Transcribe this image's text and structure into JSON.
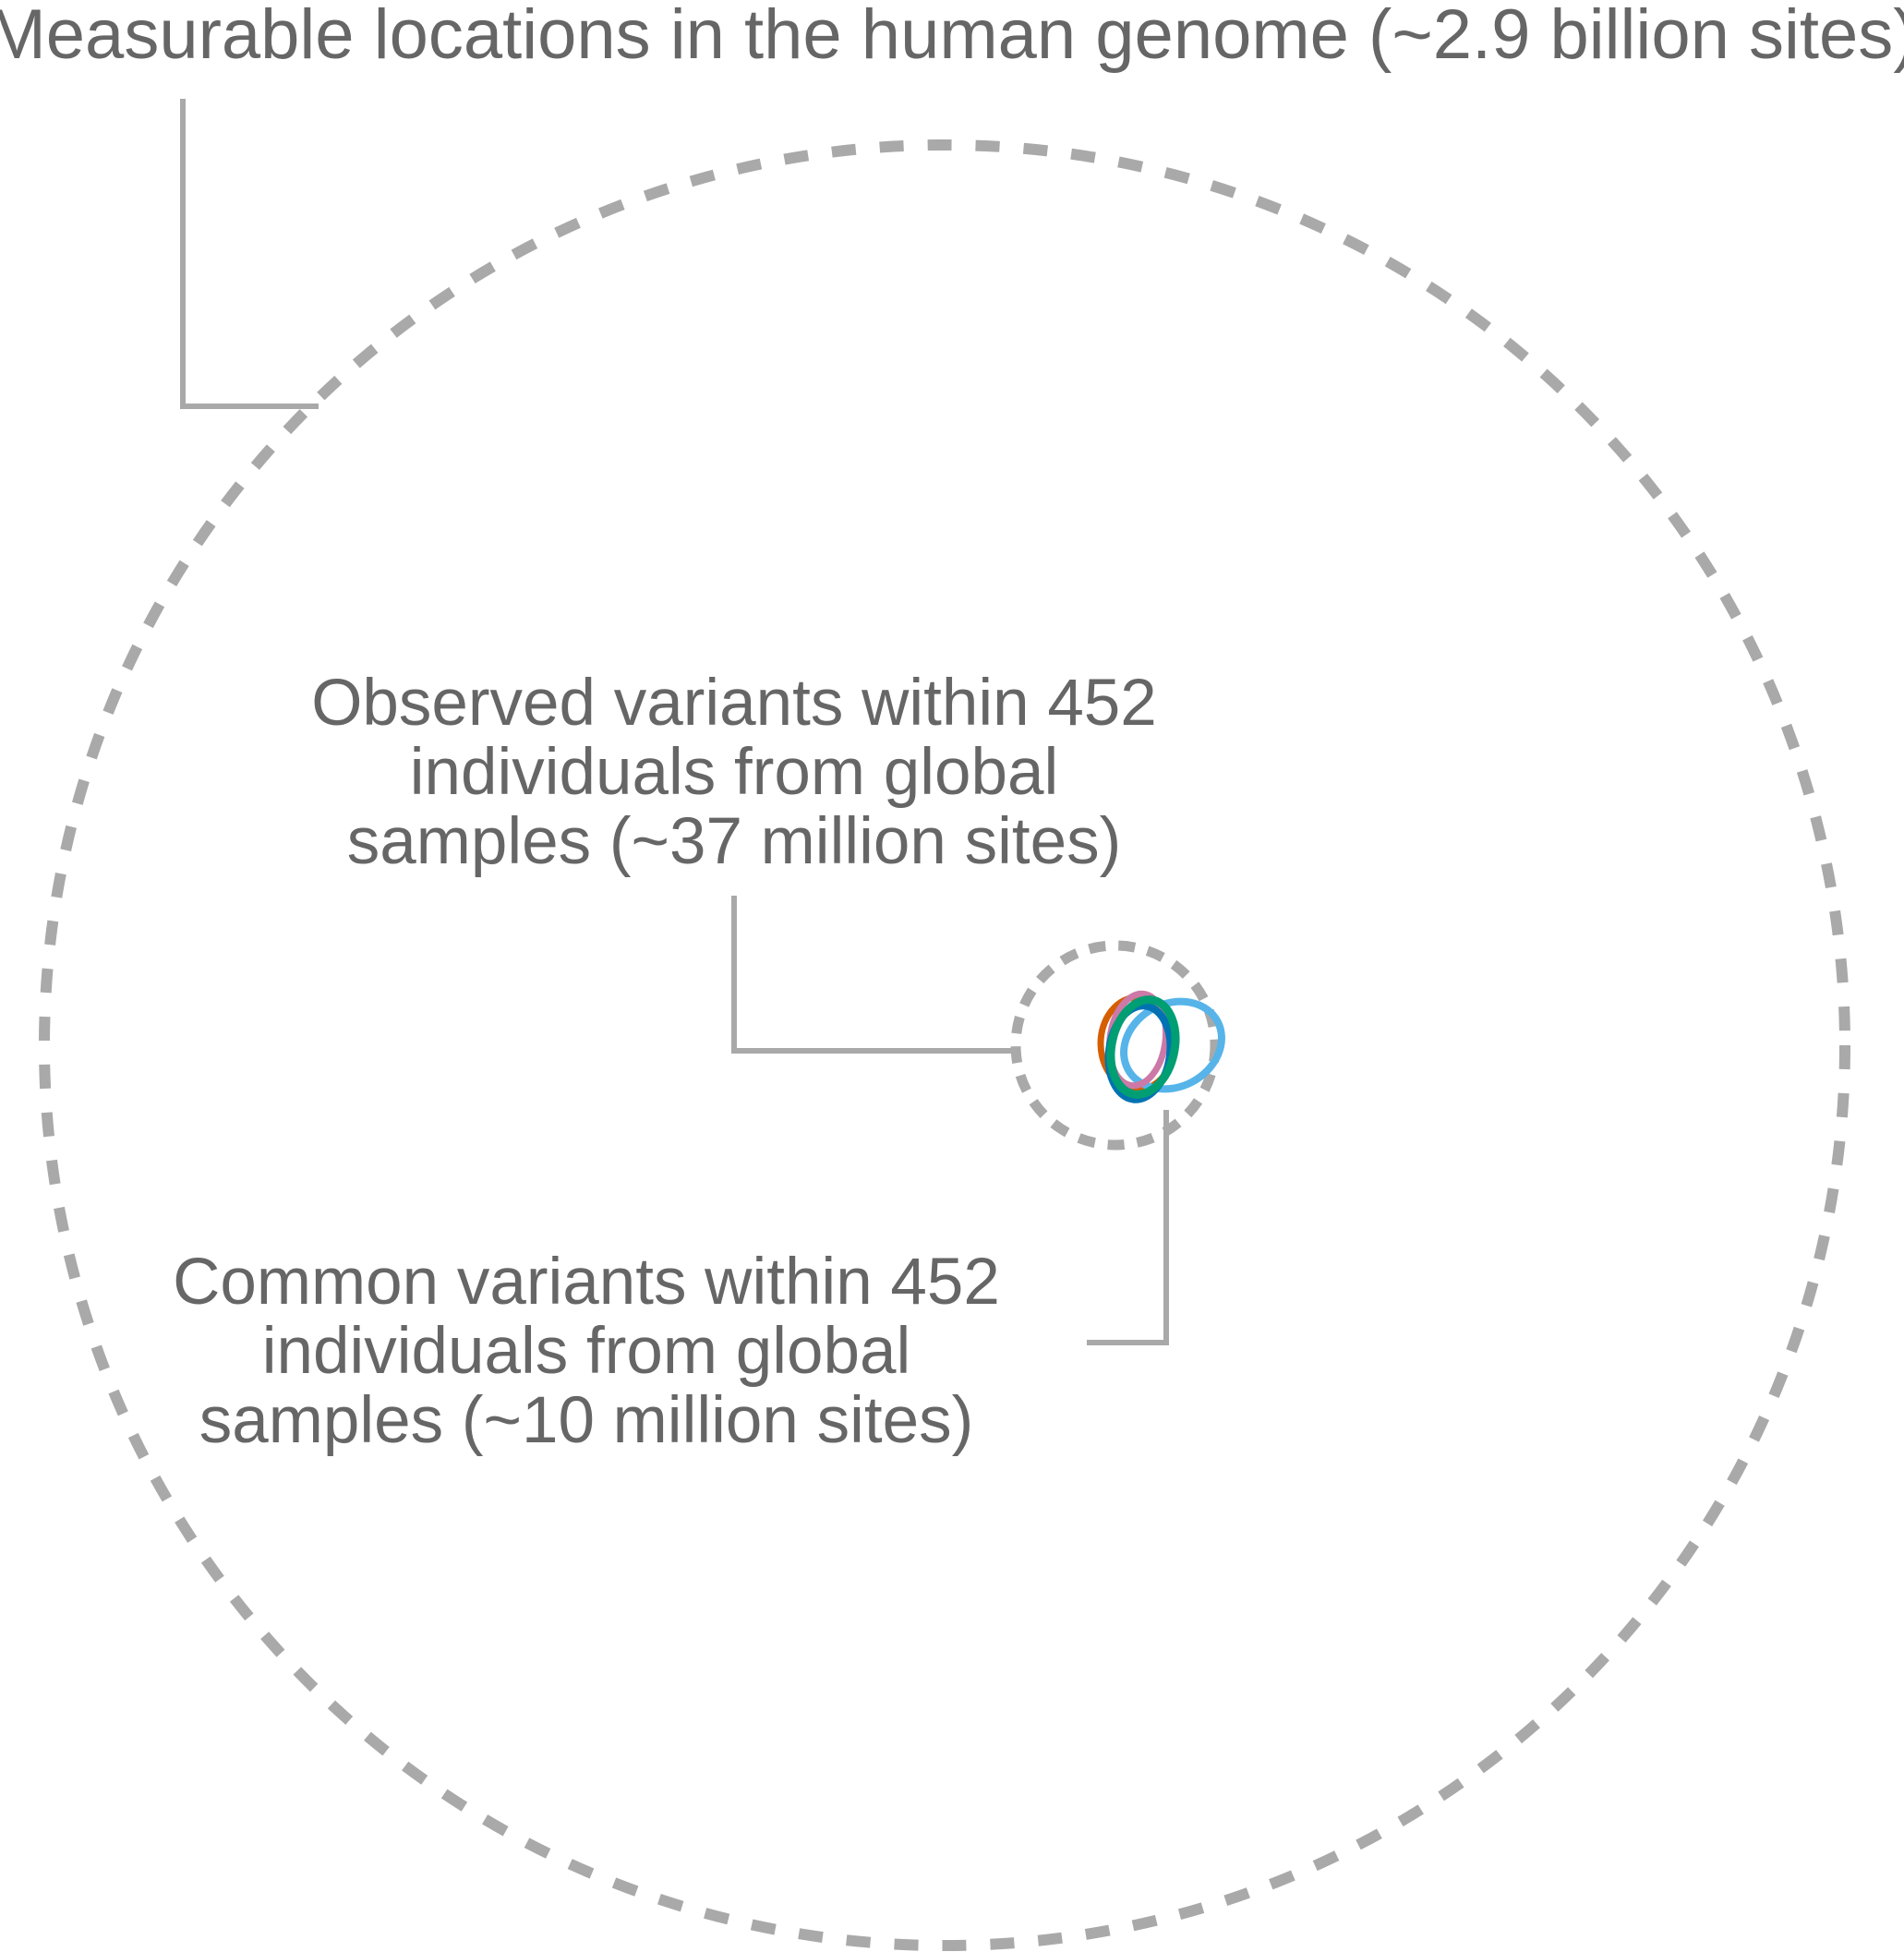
{
  "labels": {
    "genome": "Measurable locations in the human genome (~2.9 billion sites)",
    "observed": [
      "Observed variants within 452",
      "individuals from global",
      "samples (~37 million sites)"
    ],
    "common": [
      "Common variants within 452",
      "individuals from global",
      "samples (~10 million sites)"
    ]
  },
  "colors": {
    "text": "#666666",
    "guide": "#a9a9a9",
    "set_vermillion": "#d55e00",
    "set_pink": "#cc79a7",
    "set_sky_blue": "#56b4e9",
    "set_blue": "#0072b2",
    "set_green": "#009e73"
  }
}
